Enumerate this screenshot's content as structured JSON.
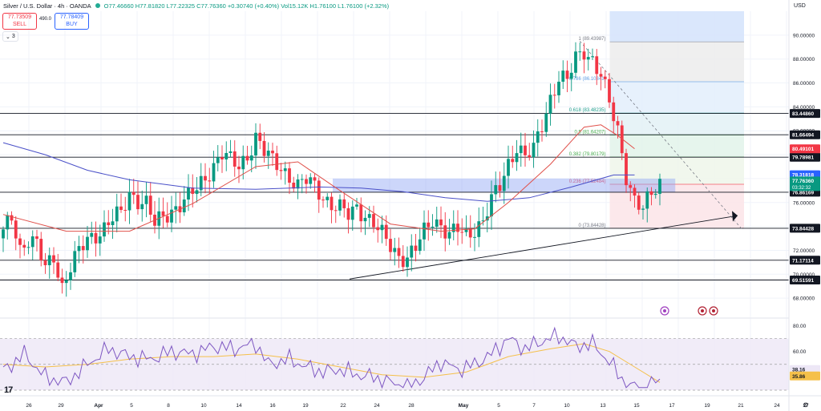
{
  "header": {
    "symbol": "Silver / U.S. Dollar · 4h · OANDA",
    "ohlc": "O77.46660 H77.81820 L77.22325 C77.76360 +0.30740 (+0.40%) Vol15.12K H1.76100 L1.76100 (+2.32%)"
  },
  "trade": {
    "sell_price": "77.73509",
    "sell_label": "SELL",
    "spread": "490.0",
    "buy_price": "77.78409",
    "buy_label": "BUY"
  },
  "indicators_count": "3",
  "currency": "USD",
  "colors": {
    "up": "#089981",
    "down": "#f23645",
    "ma_fast": "#e0504a",
    "ma_slow": "#4a50c8",
    "rsi": "#7e57c2",
    "rsi_ma": "#f5c04a",
    "grid": "#f0f3fa"
  },
  "chart_data": {
    "type": "candlestick",
    "timeframe": "4h",
    "x_tick_labels": [
      "26",
      "29",
      "Apr",
      "5",
      "8",
      "10",
      "14",
      "16",
      "19",
      "22",
      "24",
      "28",
      "May",
      "5",
      "7",
      "10",
      "13",
      "15",
      "17",
      "19",
      "21",
      "24",
      "27"
    ],
    "y_axis_ticks": [
      "90.00000",
      "88.00000",
      "86.00000",
      "84.00000",
      "82.00000",
      "80.00000",
      "78.00000",
      "76.00000",
      "74.00000",
      "72.00000",
      "70.00000",
      "68.00000"
    ],
    "ylim": [
      66.4,
      92.0
    ],
    "candles_close_path": [
      [
        0,
        73.4
      ],
      [
        2,
        74.8
      ],
      [
        4,
        72.2
      ],
      [
        6,
        73.0
      ],
      [
        8,
        72.4
      ],
      [
        10,
        70.4
      ],
      [
        12,
        71.6
      ],
      [
        14,
        69.0
      ],
      [
        16,
        70.6
      ],
      [
        18,
        71.8
      ],
      [
        20,
        72.9
      ],
      [
        22,
        73.4
      ],
      [
        24,
        73.9
      ],
      [
        26,
        74.6
      ],
      [
        28,
        75.0
      ],
      [
        30,
        76.8
      ],
      [
        32,
        76.3
      ],
      [
        34,
        75.9
      ],
      [
        36,
        74.1
      ],
      [
        38,
        74.8
      ],
      [
        40,
        75.4
      ],
      [
        42,
        75.9
      ],
      [
        44,
        76.4
      ],
      [
        46,
        77.1
      ],
      [
        48,
        78.1
      ],
      [
        50,
        79.2
      ],
      [
        52,
        80.1
      ],
      [
        54,
        79.4
      ],
      [
        56,
        79.0
      ],
      [
        58,
        80.0
      ],
      [
        60,
        81.5
      ],
      [
        62,
        80.2
      ],
      [
        64,
        79.4
      ],
      [
        66,
        79.0
      ],
      [
        68,
        78.2
      ],
      [
        70,
        77.3
      ],
      [
        72,
        77.8
      ],
      [
        74,
        77.4
      ],
      [
        76,
        76.6
      ],
      [
        78,
        75.8
      ],
      [
        80,
        75.4
      ],
      [
        82,
        74.9
      ],
      [
        84,
        75.7
      ],
      [
        86,
        75.0
      ],
      [
        88,
        74.2
      ],
      [
        90,
        73.2
      ],
      [
        92,
        72.4
      ],
      [
        94,
        71.6
      ],
      [
        96,
        71.4
      ],
      [
        98,
        72.1
      ],
      [
        100,
        73.5
      ],
      [
        102,
        74.7
      ],
      [
        104,
        74.2
      ],
      [
        106,
        73.2
      ],
      [
        108,
        73.7
      ],
      [
        110,
        73.2
      ],
      [
        112,
        73.9
      ],
      [
        114,
        74.5
      ],
      [
        116,
        76.1
      ],
      [
        118,
        77.3
      ],
      [
        120,
        79.3
      ],
      [
        122,
        80.8
      ],
      [
        124,
        79.8
      ],
      [
        126,
        80.3
      ],
      [
        128,
        82.5
      ],
      [
        130,
        84.8
      ],
      [
        132,
        86.5
      ],
      [
        134,
        86.1
      ],
      [
        136,
        88.0
      ],
      [
        138,
        88.8
      ],
      [
        140,
        88.0
      ],
      [
        142,
        86.6
      ],
      [
        144,
        84.2
      ],
      [
        146,
        82.0
      ],
      [
        148,
        78.4
      ],
      [
        150,
        76.2
      ],
      [
        152,
        75.3
      ],
      [
        154,
        76.7
      ],
      [
        156,
        77.7
      ]
    ],
    "candles_count": 157,
    "moving_average_fast_path": [
      [
        0,
        75.0
      ],
      [
        15,
        73.6
      ],
      [
        30,
        73.6
      ],
      [
        45,
        75.9
      ],
      [
        60,
        79.0
      ],
      [
        70,
        79.4
      ],
      [
        80,
        77.0
      ],
      [
        92,
        74.2
      ],
      [
        104,
        73.6
      ],
      [
        112,
        73.8
      ],
      [
        120,
        76.0
      ],
      [
        130,
        79.2
      ],
      [
        138,
        82.3
      ],
      [
        142,
        82.5
      ],
      [
        146,
        81.6
      ],
      [
        150,
        80.5
      ]
    ],
    "moving_average_slow_path": [
      [
        0,
        81.0
      ],
      [
        10,
        80.0
      ],
      [
        20,
        78.7
      ],
      [
        30,
        77.9
      ],
      [
        45,
        77.2
      ],
      [
        60,
        77.1
      ],
      [
        75,
        77.3
      ],
      [
        85,
        77.2
      ],
      [
        95,
        76.9
      ],
      [
        105,
        76.4
      ],
      [
        115,
        76.1
      ],
      [
        125,
        76.4
      ],
      [
        135,
        77.3
      ],
      [
        145,
        78.3
      ],
      [
        150,
        78.3
      ]
    ],
    "fibonacci": [
      {
        "ratio": "1",
        "price": "89.43987",
        "label": "1 (89.43987)"
      },
      {
        "ratio": "0.786",
        "price": "86.10341",
        "label": "0.786 (86.10341)"
      },
      {
        "ratio": "0.618",
        "price": "83.48235",
        "label": "0.618 (83.48235)"
      },
      {
        "ratio": "0.5",
        "price": "81.64207",
        "label": "0.5 (81.64207)"
      },
      {
        "ratio": "0.382",
        "price": "79.80179",
        "label": "0.382 (79.80179)"
      },
      {
        "ratio": "0.236",
        "price": "77.52484",
        "label": "0.236 (77.52484)"
      },
      {
        "ratio": "0",
        "price": "73.84428",
        "label": "0 (73.84428)"
      }
    ],
    "horizontal_levels": [
      {
        "price": 83.4486,
        "label": "83.44860"
      },
      {
        "price": 81.66494,
        "label": "81.66494"
      },
      {
        "price": 79.78981,
        "label": "79.78981"
      },
      {
        "price": 76.86169,
        "label": "76.86169"
      },
      {
        "price": 73.84428,
        "label": "73.84428"
      },
      {
        "price": 71.17114,
        "label": "71.17114"
      },
      {
        "price": 69.51591,
        "label": "69.51591"
      }
    ],
    "price_badges": [
      {
        "price": 80.49101,
        "label": "80.49101",
        "color": "#f23645"
      },
      {
        "price": 78.31818,
        "label": "78.31818",
        "color": "#2962ff"
      },
      {
        "price": 77.7636,
        "label": "77.76360",
        "sub": "03:32:32",
        "color": "#089981"
      }
    ],
    "rsi": {
      "ylim": [
        30,
        84
      ],
      "ticks": [
        "80.00",
        "60.00",
        "40.00"
      ],
      "value": "38.16",
      "ma_value": "35.86",
      "band_upper": 70,
      "band_lower": 30,
      "path": [
        [
          0,
          45
        ],
        [
          5,
          58
        ],
        [
          10,
          40
        ],
        [
          15,
          36
        ],
        [
          20,
          50
        ],
        [
          25,
          62
        ],
        [
          30,
          56
        ],
        [
          35,
          54
        ],
        [
          40,
          60
        ],
        [
          45,
          58
        ],
        [
          50,
          64
        ],
        [
          55,
          62
        ],
        [
          60,
          66
        ],
        [
          63,
          50
        ],
        [
          68,
          54
        ],
        [
          72,
          48
        ],
        [
          76,
          44
        ],
        [
          80,
          46
        ],
        [
          84,
          42
        ],
        [
          88,
          40
        ],
        [
          92,
          36
        ],
        [
          96,
          32
        ],
        [
          100,
          40
        ],
        [
          104,
          52
        ],
        [
          108,
          46
        ],
        [
          112,
          50
        ],
        [
          116,
          58
        ],
        [
          120,
          70
        ],
        [
          124,
          62
        ],
        [
          128,
          68
        ],
        [
          132,
          72
        ],
        [
          136,
          64
        ],
        [
          140,
          66
        ],
        [
          144,
          52
        ],
        [
          148,
          34
        ],
        [
          152,
          30
        ],
        [
          156,
          38
        ]
      ],
      "ma_path": [
        [
          0,
          50
        ],
        [
          10,
          48
        ],
        [
          20,
          50
        ],
        [
          30,
          54
        ],
        [
          40,
          56
        ],
        [
          50,
          56
        ],
        [
          60,
          58
        ],
        [
          70,
          54
        ],
        [
          80,
          48
        ],
        [
          90,
          42
        ],
        [
          100,
          40
        ],
        [
          110,
          44
        ],
        [
          120,
          56
        ],
        [
          130,
          62
        ],
        [
          138,
          66
        ],
        [
          144,
          60
        ],
        [
          150,
          48
        ],
        [
          156,
          36
        ]
      ]
    }
  }
}
